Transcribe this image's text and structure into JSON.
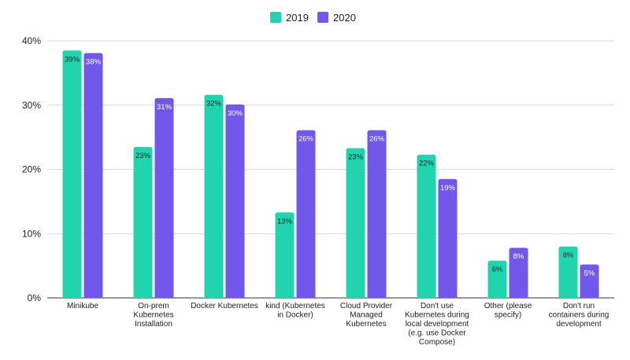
{
  "chart_data": {
    "type": "bar",
    "title": "",
    "xlabel": "",
    "ylabel": "",
    "ylim": [
      0,
      40
    ],
    "yticks": [
      0,
      10,
      20,
      30,
      40
    ],
    "ytick_labels": [
      "0%",
      "10%",
      "20%",
      "30%",
      "40%"
    ],
    "grid": true,
    "legend_position": "top-center",
    "categories": [
      [
        "Minikube"
      ],
      [
        "On-prem",
        "Kubernetes",
        "Installation"
      ],
      [
        "Docker Kubernetes"
      ],
      [
        "kind (Kubernetes",
        "in Docker)"
      ],
      [
        "Cloud Provider",
        "Managed",
        "Kubernetes"
      ],
      [
        "Don't use",
        "Kubernetes during",
        "local development",
        "(e.g. use Docker",
        "Compose)"
      ],
      [
        "Other (please",
        "specify)"
      ],
      [
        "Don't run",
        "containers during",
        "development"
      ]
    ],
    "series": [
      {
        "name": "2019",
        "color": "#20d4b0",
        "label_color": "#222222",
        "values": [
          38.5,
          23.5,
          31.6,
          13.3,
          23.3,
          22.3,
          5.8,
          8.0
        ],
        "labels": [
          "39%",
          "23%",
          "32%",
          "13%",
          "23%",
          "22%",
          "6%",
          "8%"
        ]
      },
      {
        "name": "2020",
        "color": "#7158ea",
        "label_color": "#ffffff",
        "values": [
          38.1,
          31.1,
          30.1,
          26.1,
          26.1,
          18.5,
          7.8,
          5.2
        ],
        "labels": [
          "38%",
          "31%",
          "30%",
          "26%",
          "26%",
          "19%",
          "8%",
          "5%"
        ]
      }
    ]
  }
}
